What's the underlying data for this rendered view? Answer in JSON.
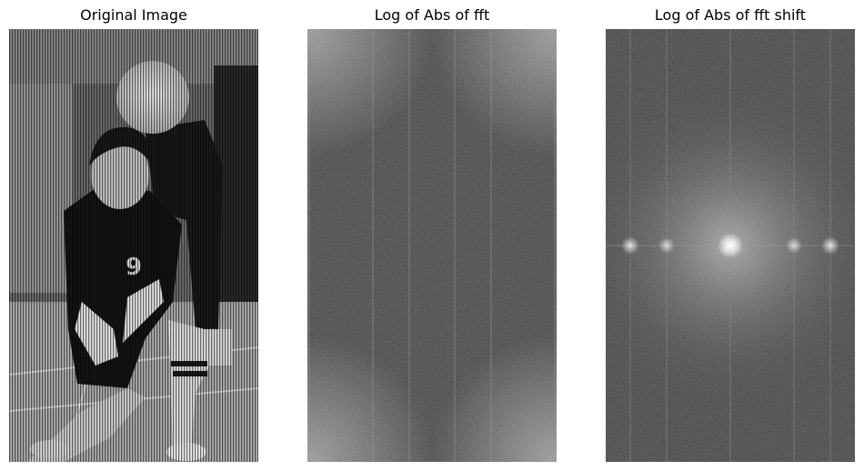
{
  "panels": [
    {
      "title": "Original Image",
      "image": "grayscale photo of a volleyball player crouching to bump a ball, another player behind, with fine vertical stripe noise",
      "mode": "photo"
    },
    {
      "title": "Log of Abs of fft",
      "image": "log-magnitude FFT spectrum, bright corners and faint vertical lines",
      "mode": "fft"
    },
    {
      "title": "Log of Abs of fft shift",
      "image": "centered log-magnitude FFT spectrum with bright center and horizontal row of bright peaks",
      "mode": "fftshift"
    }
  ],
  "colormap": "gray"
}
